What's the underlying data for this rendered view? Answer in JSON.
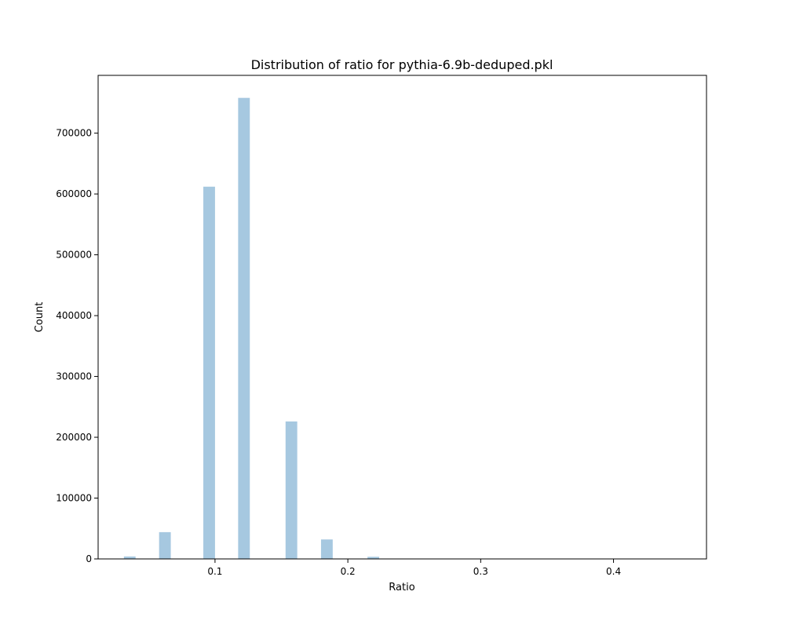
{
  "chart_data": {
    "type": "bar",
    "title": "Distribution of ratio for pythia-6.9b-deduped.pkl",
    "xlabel": "Ratio",
    "ylabel": "Count",
    "xlim": [
      0.012,
      0.47
    ],
    "ylim": [
      0,
      795000
    ],
    "bar_width": 0.0088,
    "bar_color": "#a6c8e0",
    "x_ticks": [
      {
        "value": 0.1,
        "label": "0.1"
      },
      {
        "value": 0.2,
        "label": "0.2"
      },
      {
        "value": 0.3,
        "label": "0.3"
      },
      {
        "value": 0.4,
        "label": "0.4"
      }
    ],
    "y_ticks": [
      {
        "value": 0,
        "label": "0"
      },
      {
        "value": 100000,
        "label": "100000"
      },
      {
        "value": 200000,
        "label": "200000"
      },
      {
        "value": 300000,
        "label": "300000"
      },
      {
        "value": 400000,
        "label": "400000"
      },
      {
        "value": 500000,
        "label": "500000"
      },
      {
        "value": 600000,
        "label": "600000"
      },
      {
        "value": 700000,
        "label": "700000"
      }
    ],
    "bars": [
      {
        "x": 0.0358,
        "value": 4000
      },
      {
        "x": 0.0623,
        "value": 44000
      },
      {
        "x": 0.0956,
        "value": 612000
      },
      {
        "x": 0.1218,
        "value": 758000
      },
      {
        "x": 0.1575,
        "value": 226000
      },
      {
        "x": 0.1842,
        "value": 32000
      },
      {
        "x": 0.2192,
        "value": 3500
      }
    ]
  }
}
